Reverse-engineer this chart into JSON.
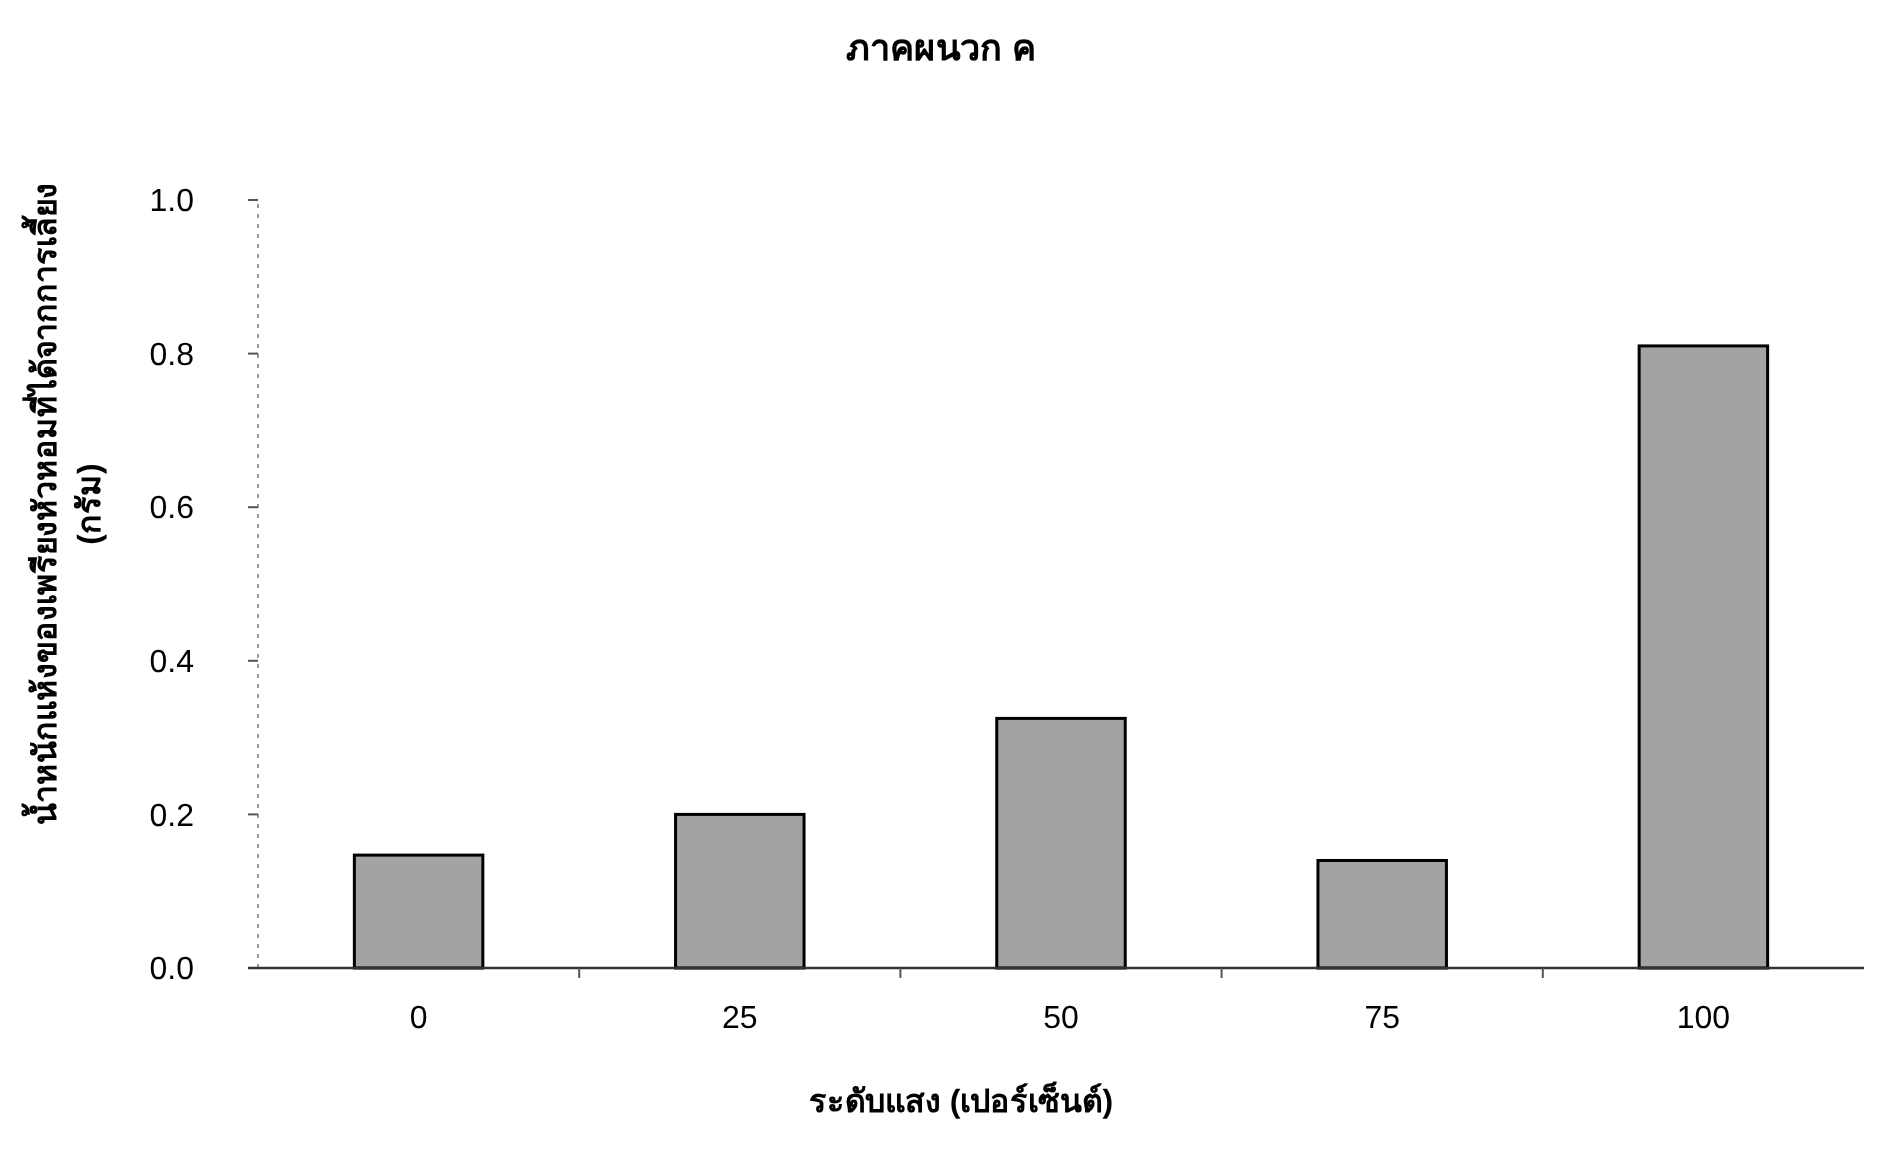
{
  "chart_data": {
    "type": "bar",
    "title": "ภาคผนวก ค",
    "xlabel": "ระดับแสง (เปอร์เซ็นต์)",
    "ylabel": "น้ำหนักแห้งของเพรียงหัวหอมที่ได้จากการเลี้ยง (กรัม)",
    "categories": [
      "0",
      "25",
      "50",
      "75",
      "100"
    ],
    "values": [
      0.147,
      0.2,
      0.325,
      0.14,
      0.81
    ],
    "color": "#a3a3a3",
    "ylim": [
      0,
      1
    ],
    "yticks": [
      {
        "value": 0,
        "label": "0.0"
      },
      {
        "value": 0.2,
        "label": "0.2"
      },
      {
        "value": 0.4,
        "label": "0.4"
      },
      {
        "value": 0.6,
        "label": "0.6"
      },
      {
        "value": 0.8,
        "label": "0.8"
      },
      {
        "value": 1,
        "label": "1.0"
      }
    ],
    "grid": false
  }
}
